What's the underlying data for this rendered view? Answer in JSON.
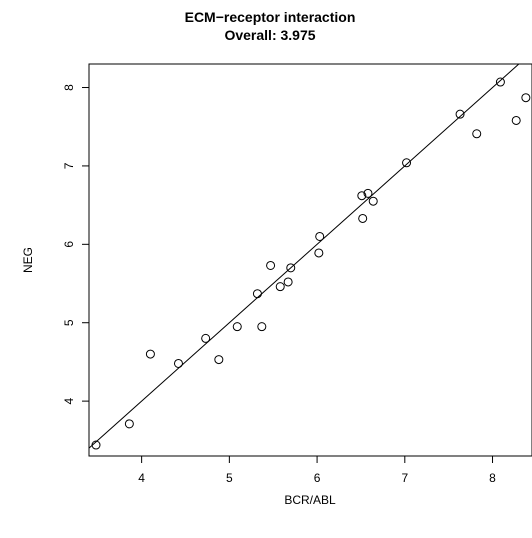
{
  "chart_data": {
    "type": "scatter",
    "title": "ECM−receptor interaction",
    "subtitle": "Overall: 3.975",
    "xlabel": "BCR/ABL",
    "ylabel": "NEG",
    "xlim": [
      3.4,
      8.45
    ],
    "ylim": [
      3.3,
      8.3
    ],
    "x_ticks": [
      4,
      5,
      6,
      7,
      8
    ],
    "y_ticks": [
      4,
      5,
      6,
      7,
      8
    ],
    "grid": false,
    "legend": "none",
    "points": [
      {
        "x": 3.48,
        "y": 3.44
      },
      {
        "x": 3.86,
        "y": 3.71
      },
      {
        "x": 4.1,
        "y": 4.6
      },
      {
        "x": 4.42,
        "y": 4.48
      },
      {
        "x": 4.73,
        "y": 4.8
      },
      {
        "x": 4.88,
        "y": 4.53
      },
      {
        "x": 5.09,
        "y": 4.95
      },
      {
        "x": 5.32,
        "y": 5.37
      },
      {
        "x": 5.37,
        "y": 4.95
      },
      {
        "x": 5.47,
        "y": 5.73
      },
      {
        "x": 5.58,
        "y": 5.46
      },
      {
        "x": 5.67,
        "y": 5.52
      },
      {
        "x": 5.7,
        "y": 5.7
      },
      {
        "x": 6.02,
        "y": 5.89
      },
      {
        "x": 6.03,
        "y": 6.1
      },
      {
        "x": 6.51,
        "y": 6.62
      },
      {
        "x": 6.52,
        "y": 6.33
      },
      {
        "x": 6.58,
        "y": 6.65
      },
      {
        "x": 6.64,
        "y": 6.55
      },
      {
        "x": 7.02,
        "y": 7.04
      },
      {
        "x": 7.63,
        "y": 7.66
      },
      {
        "x": 7.82,
        "y": 7.41
      },
      {
        "x": 8.09,
        "y": 8.07
      },
      {
        "x": 8.27,
        "y": 7.58
      },
      {
        "x": 8.38,
        "y": 7.87
      }
    ],
    "reference_line": {
      "slope": 1,
      "intercept": 0
    }
  }
}
